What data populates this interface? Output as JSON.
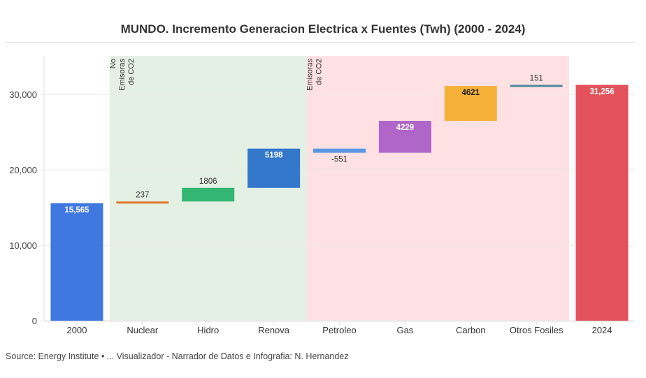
{
  "title": "MUNDO. Incremento Generacion Electrica x Fuentes (Twh) (2000 - 2024)",
  "source": "Source: Energy Institute • ... Visualizador - Narrador de Datos e Infografia: N. Hernandez",
  "chart_data": {
    "type": "bar",
    "subtype": "waterfall",
    "title": "MUNDO. Incremento Generacion Electrica x Fuentes (Twh) (2000 - 2024)",
    "xlabel": "",
    "ylabel": "",
    "ylim": [
      0,
      35000
    ],
    "yticks": [
      0,
      10000,
      20000,
      30000
    ],
    "ytick_labels": [
      "0",
      "10,000",
      "20,000",
      "30,000"
    ],
    "grid": true,
    "categories": [
      "2000",
      "Nuclear",
      "Hidro",
      "Renova",
      "Petroleo",
      "Gas",
      "Carbon",
      "Otros Fosiles",
      "2024"
    ],
    "values": [
      15565,
      237,
      1806,
      5198,
      -551,
      4229,
      4621,
      151,
      31256
    ],
    "kinds": [
      "total",
      "delta",
      "delta",
      "delta",
      "delta",
      "delta",
      "delta",
      "delta",
      "total"
    ],
    "labels": [
      "15,565",
      "237",
      "1806",
      "5198",
      "-551",
      "4229",
      "4621",
      "151",
      "31,256"
    ],
    "label_position": [
      "inside",
      "above",
      "above",
      "inside",
      "below",
      "inside",
      "inside",
      "above",
      "inside"
    ],
    "colors": [
      "#3f78e0",
      "#e07b2a",
      "#34b673",
      "#3478cc",
      "#5a96e3",
      "#b066c8",
      "#f5b038",
      "#4a8a9a",
      "#e3525a"
    ],
    "regions": [
      {
        "label_lines": [
          "No",
          "Emisoras",
          "de CO2"
        ],
        "from_category": "Nuclear",
        "to_category": "Renova",
        "color": "#e4f0e4"
      },
      {
        "label_lines": [
          "Emisoras",
          "de CO2"
        ],
        "from_category": "Petroleo",
        "to_category": "Otros Fosiles",
        "color": "#ffe1e3"
      }
    ]
  }
}
